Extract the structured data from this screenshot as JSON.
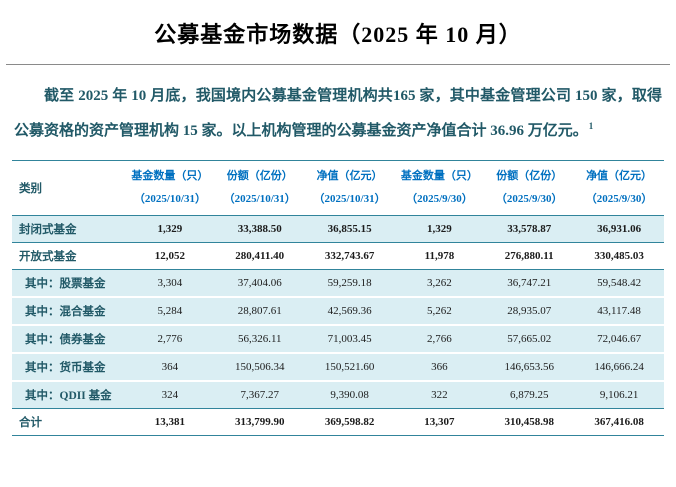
{
  "page": {
    "title": "公募基金市场数据（2025 年 10 月）",
    "intro_text": "截至 2025 年 10 月底，我国境内公募基金管理机构共165 家，其中基金管理公司 150 家，取得公募资格的资产管理机构 15 家。以上机构管理的公募基金资产净值合计 36.96 万亿元。",
    "footnote_marker": "1"
  },
  "colors": {
    "body_text_teal": "#215967",
    "table_border_teal": "#31849B",
    "row_shade_cyan": "#DAEEF3",
    "header_text_blue": "#0070C0",
    "number_text": "#1c1c1c"
  },
  "table": {
    "category_header": "类别",
    "columns": [
      {
        "label": "基金数量（只）",
        "date": "（2025/10/31）"
      },
      {
        "label": "份额（亿份）",
        "date": "（2025/10/31）"
      },
      {
        "label": "净值（亿元）",
        "date": "（2025/10/31）"
      },
      {
        "label": "基金数量（只）",
        "date": "（2025/9/30）"
      },
      {
        "label": "份额（亿份）",
        "date": "（2025/9/30）"
      },
      {
        "label": "净值（亿元）",
        "date": "（2025/9/30）"
      }
    ],
    "rows": [
      {
        "label": "封闭式基金",
        "style": "shade",
        "bold": true,
        "indent": false,
        "values": [
          "1,329",
          "33,388.50",
          "36,855.15",
          "1,329",
          "33,578.87",
          "36,931.06"
        ]
      },
      {
        "label": "开放式基金",
        "style": "highlight",
        "bold": true,
        "indent": false,
        "values": [
          "12,052",
          "280,411.40",
          "332,743.67",
          "11,978",
          "276,880.11",
          "330,485.03"
        ]
      },
      {
        "label": "其中：股票基金",
        "style": "shade",
        "bold": false,
        "indent": true,
        "values": [
          "3,304",
          "37,404.06",
          "59,259.18",
          "3,262",
          "36,747.21",
          "59,548.42"
        ]
      },
      {
        "label": "其中：混合基金",
        "style": "shade",
        "bold": false,
        "indent": true,
        "values": [
          "5,284",
          "28,807.61",
          "42,569.36",
          "5,262",
          "28,935.07",
          "43,117.48"
        ]
      },
      {
        "label": "其中：债券基金",
        "style": "shade",
        "bold": false,
        "indent": true,
        "values": [
          "2,776",
          "56,326.11",
          "71,003.45",
          "2,766",
          "57,665.02",
          "72,046.67"
        ]
      },
      {
        "label": "其中：货币基金",
        "style": "shade",
        "bold": false,
        "indent": true,
        "values": [
          "364",
          "150,506.34",
          "150,521.60",
          "366",
          "146,653.56",
          "146,666.24"
        ]
      },
      {
        "label": "其中：QDII 基金",
        "style": "shade",
        "bold": false,
        "indent": true,
        "values": [
          "324",
          "7,367.27",
          "9,390.08",
          "322",
          "6,879.25",
          "9,106.21"
        ]
      },
      {
        "label": "合计",
        "style": "highlight",
        "bold": true,
        "indent": false,
        "values": [
          "13,381",
          "313,799.90",
          "369,598.82",
          "13,307",
          "310,458.98",
          "367,416.08"
        ]
      }
    ]
  }
}
